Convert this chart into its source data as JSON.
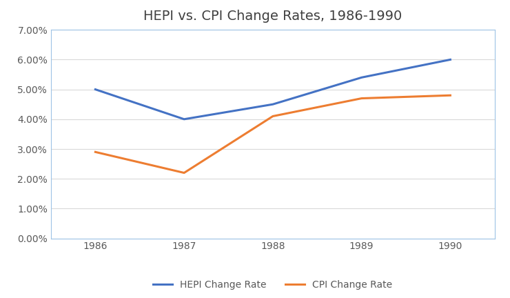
{
  "title": "HEPI vs. CPI Change Rates, 1986-1990",
  "years": [
    1986,
    1987,
    1988,
    1989,
    1990
  ],
  "hepi": [
    0.05,
    0.04,
    0.045,
    0.054,
    0.06
  ],
  "cpi": [
    0.029,
    0.022,
    0.041,
    0.047,
    0.048
  ],
  "hepi_color": "#4472C4",
  "cpi_color": "#ED7D31",
  "hepi_label": "HEPI Change Rate",
  "cpi_label": "CPI Change Rate",
  "ylim": [
    0.0,
    0.07
  ],
  "yticks": [
    0.0,
    0.01,
    0.02,
    0.03,
    0.04,
    0.05,
    0.06,
    0.07
  ],
  "background_color": "#ffffff",
  "grid_color": "#d9d9d9",
  "title_fontsize": 14,
  "tick_fontsize": 10,
  "legend_fontsize": 10,
  "line_width": 2.2,
  "spine_color": "#9DC3E6",
  "tick_color": "#595959"
}
